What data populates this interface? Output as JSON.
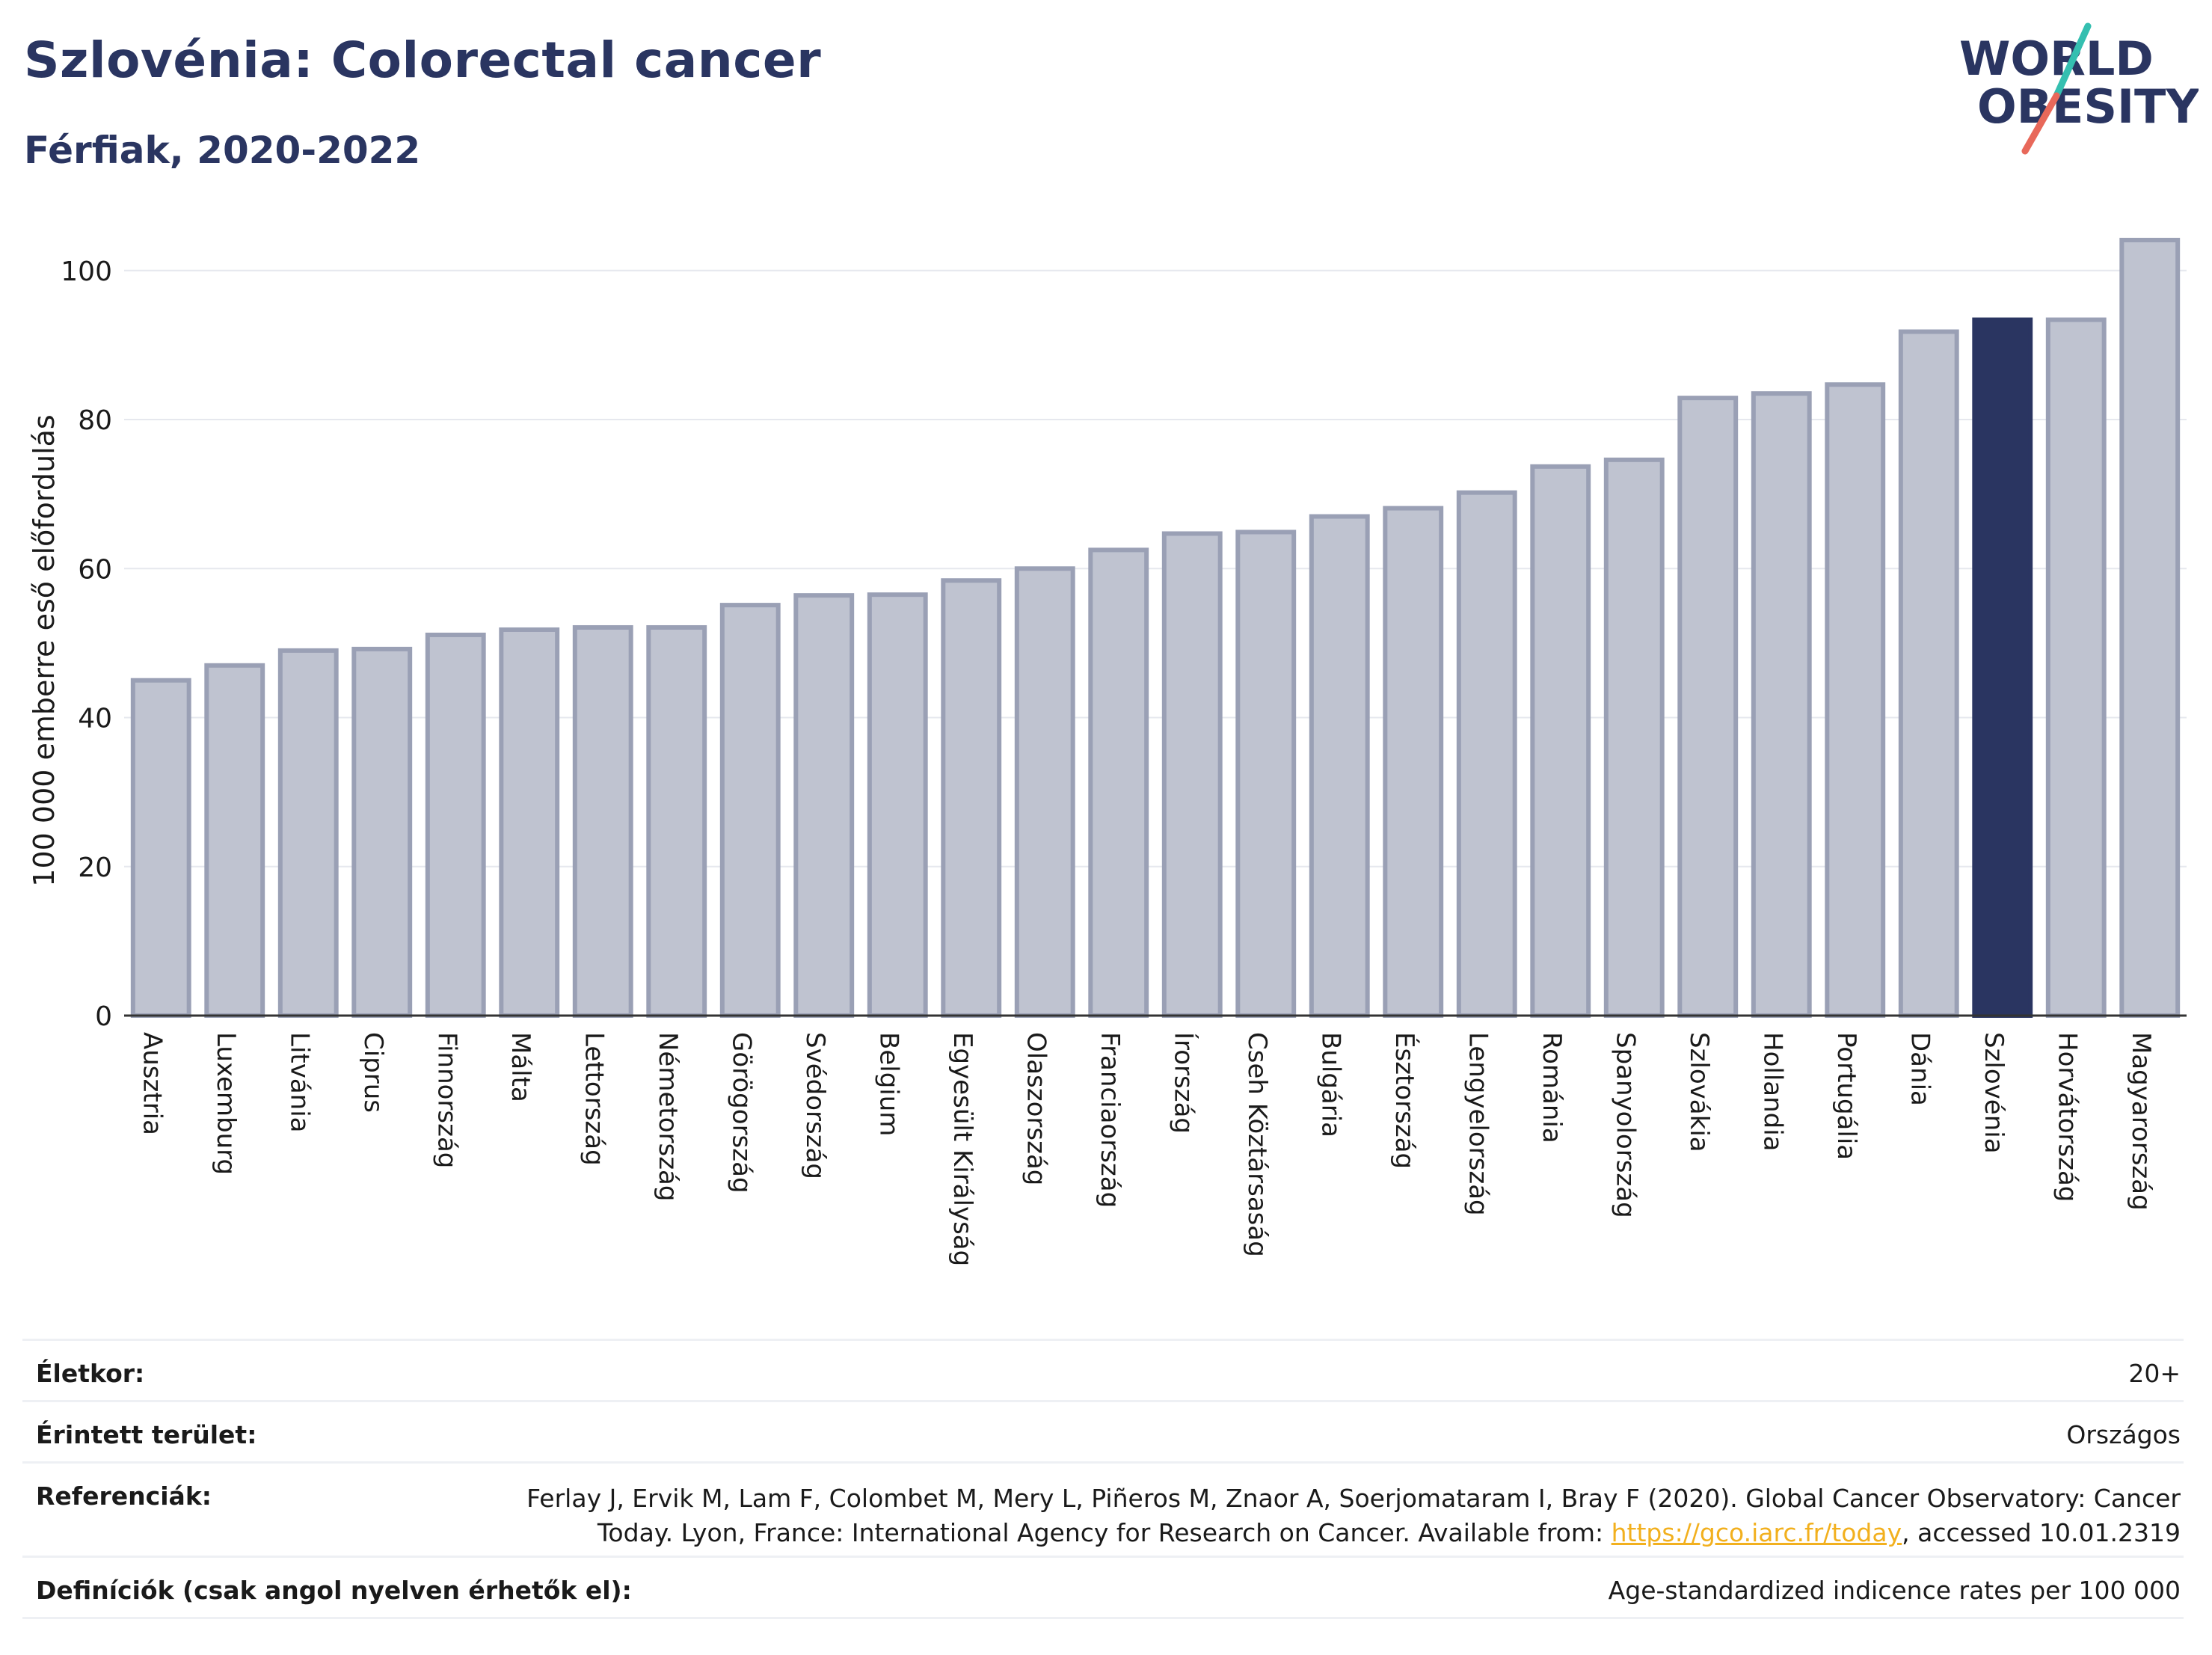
{
  "header": {
    "title": "Szlovénia: Colorectal cancer",
    "subtitle": "Férfiak, 2020-2022"
  },
  "logo": {
    "line1": "WORLD",
    "line2": "OBESITY",
    "accent_colors": [
      "#35bfb0",
      "#e8685a"
    ]
  },
  "chart_data": {
    "type": "bar",
    "ylabel": "100 000 emberre eső előfordulás",
    "xlabel": "",
    "ylim": [
      0,
      105
    ],
    "yticks": [
      0,
      20,
      40,
      60,
      80,
      100
    ],
    "grid": true,
    "highlight": "Szlovénia",
    "colors": {
      "bar": "#bfc3d0",
      "bar_edge": "#9aa0b5",
      "highlight": "#2a3561",
      "grid": "#e6e8ee",
      "axis": "#333333"
    },
    "categories": [
      "Ausztria",
      "Luxemburg",
      "Litvánia",
      "Ciprus",
      "Finnország",
      "Málta",
      "Lettország",
      "Németország",
      "Görögország",
      "Svédország",
      "Belgium",
      "Egyesült Királyság",
      "Olaszország",
      "Franciaország",
      "Írország",
      "Cseh Köztársaság",
      "Bulgária",
      "Észtország",
      "Lengyelország",
      "Románia",
      "Spanyolország",
      "Szlovákia",
      "Hollandia",
      "Portugália",
      "Dánia",
      "Szlovénia",
      "Horvátország",
      "Magyarország"
    ],
    "values": [
      45.0,
      47.0,
      49.0,
      49.2,
      51.1,
      51.8,
      52.1,
      52.1,
      55.1,
      56.4,
      56.5,
      58.4,
      60.0,
      62.5,
      64.7,
      64.9,
      67.0,
      68.1,
      70.2,
      73.7,
      74.6,
      82.9,
      83.5,
      84.7,
      91.8,
      93.4,
      93.4,
      104.1
    ]
  },
  "info": {
    "age_label": "Életkor:",
    "age_value": "20+",
    "area_label": "Érintett terület:",
    "area_value": "Országos",
    "ref_label": "Referenciák:",
    "ref_line1": "Ferlay J, Ervik M, Lam F, Colombet M, Mery L, Piñeros M, Znaor A, Soerjomataram I, Bray F (2020). Global Cancer Observatory: Cancer",
    "ref_line2_pre": "Today. Lyon, France: International Agency for Research on Cancer. Available from: ",
    "ref_link": "https://gco.iarc.fr/today",
    "ref_line2_post": ", accessed 10.01.2319",
    "def_label": "Definíciók (csak angol nyelven érhetők el):",
    "def_value": "Age-standardized indicence rates per 100 000"
  }
}
